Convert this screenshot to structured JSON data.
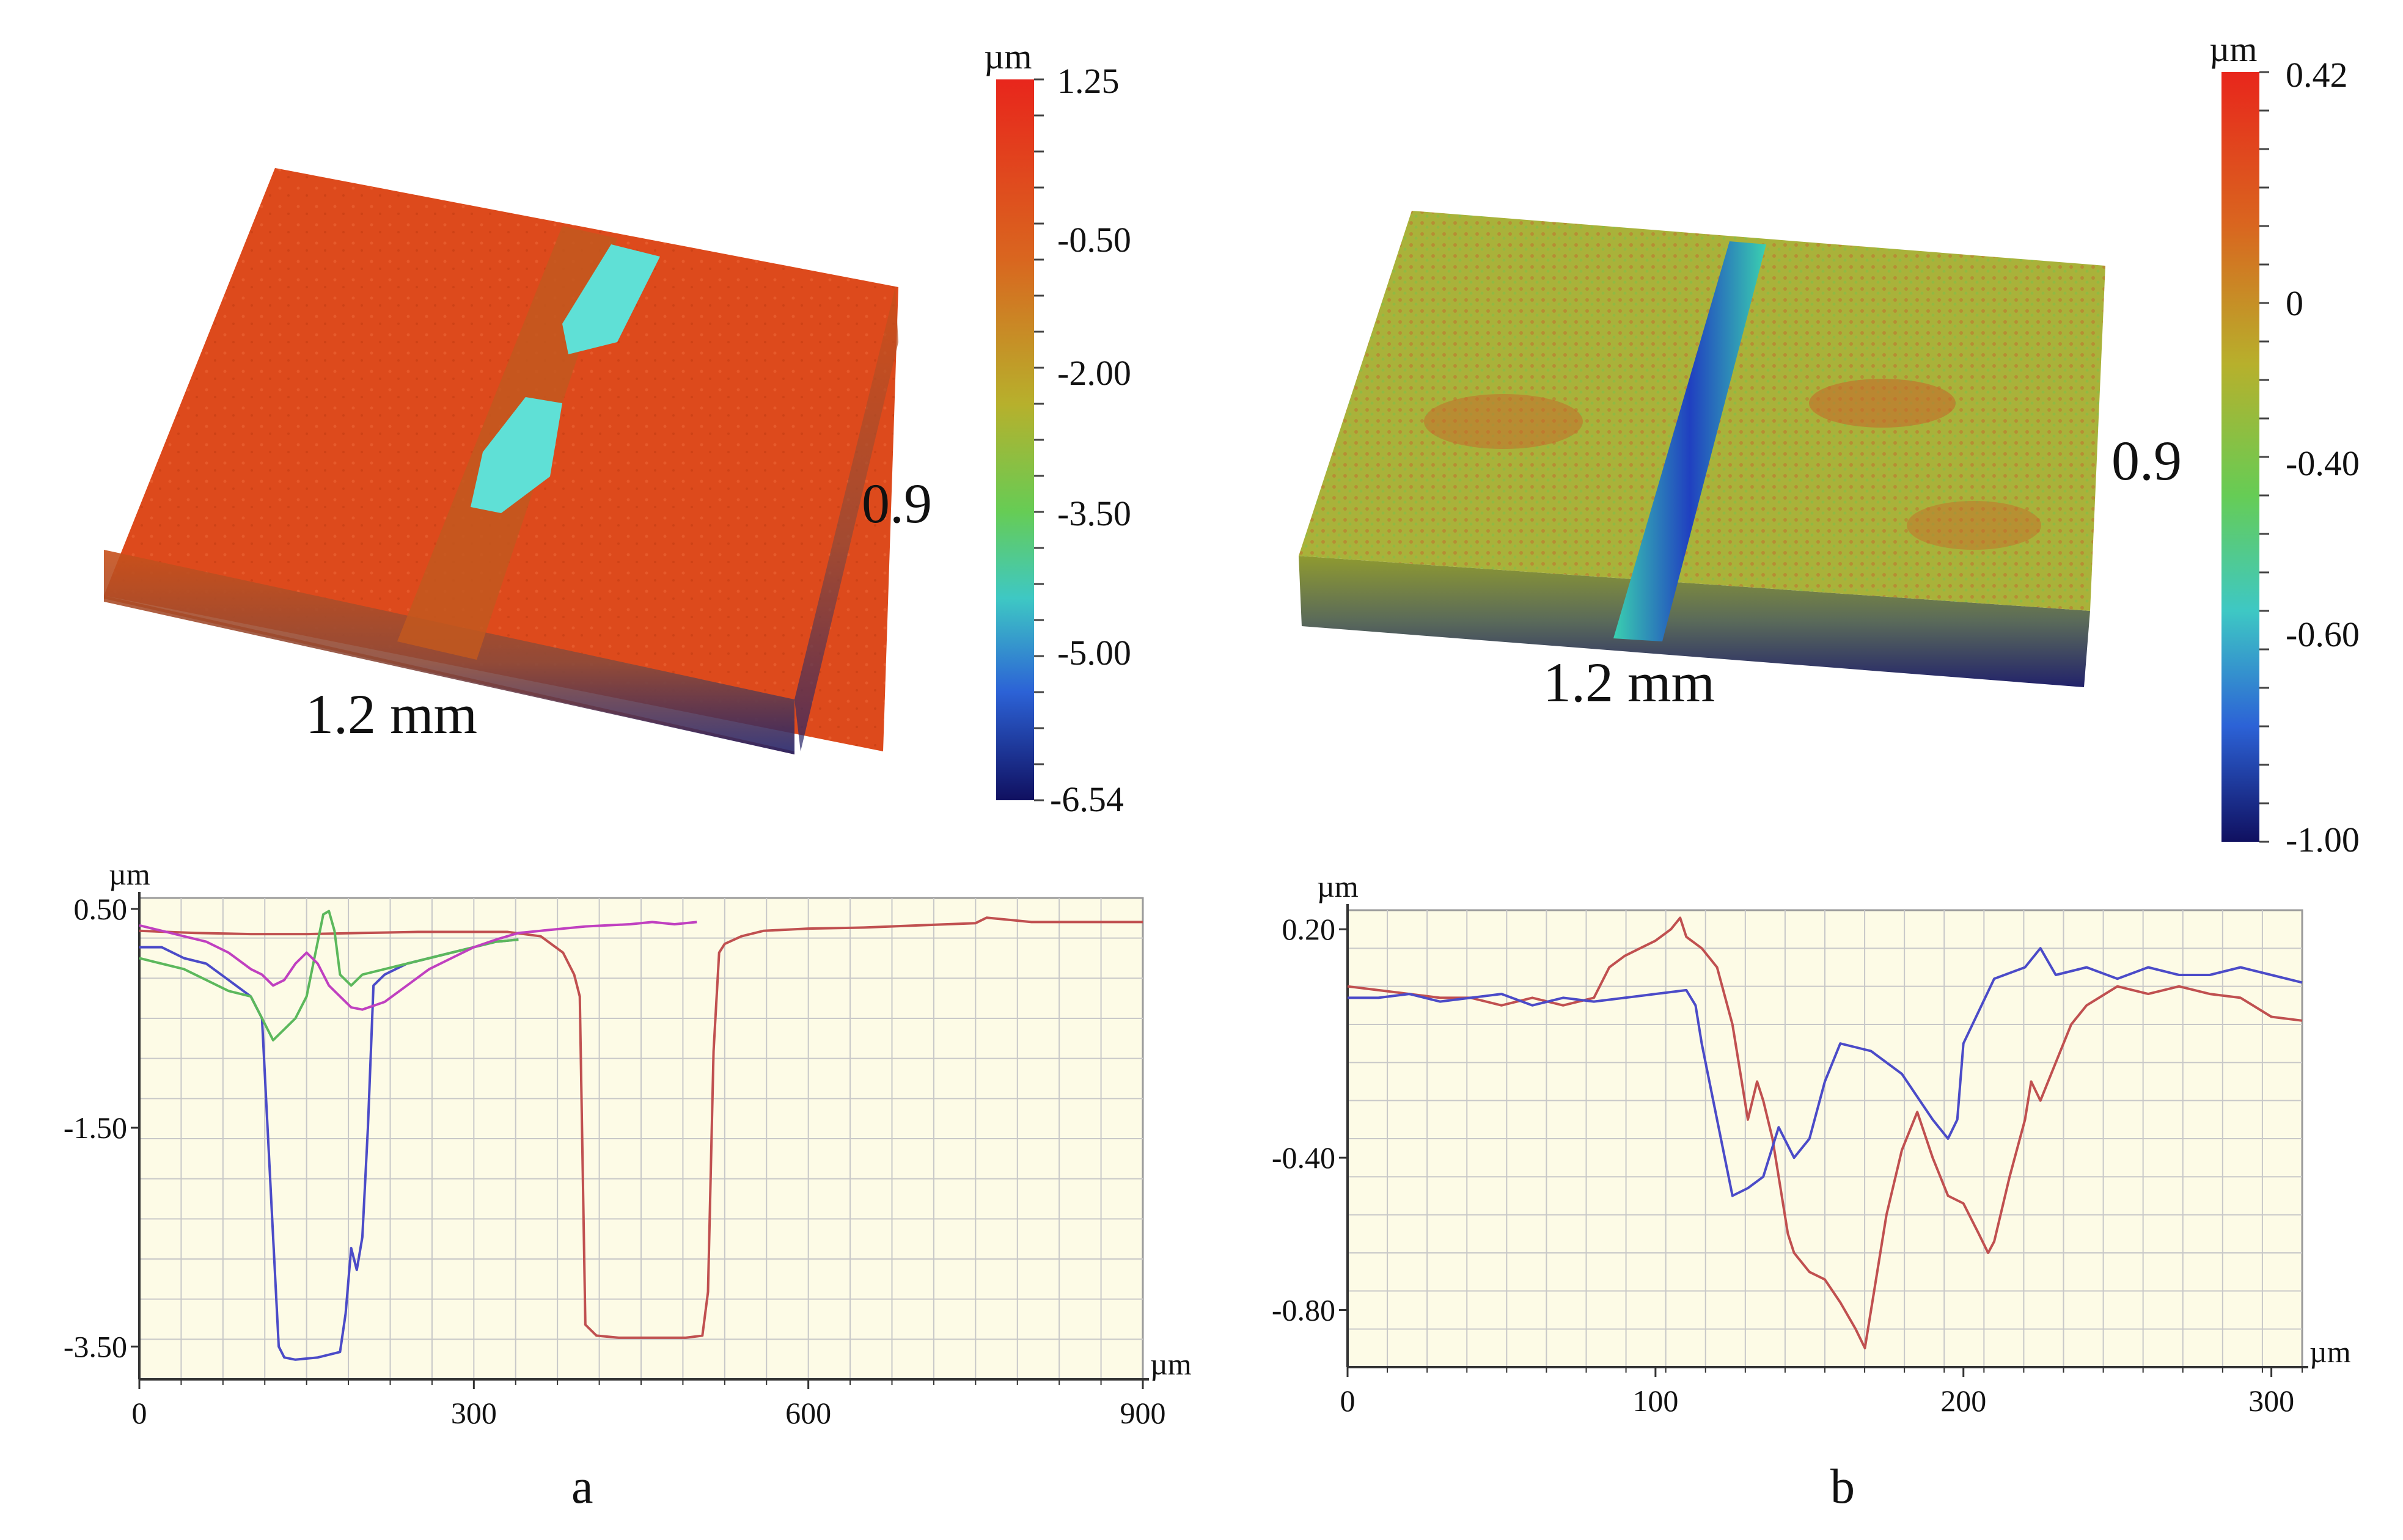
{
  "panels": [
    {
      "label": "a",
      "surface": {
        "width_label": "1.2 mm",
        "depth_label": "0.9"
      },
      "colorbar": {
        "unit": "µm",
        "max": 1.25,
        "min": -6.54,
        "ticks": [
          "1.25",
          "-0.50",
          "-2.00",
          "-3.50",
          "-5.00",
          "-6.54"
        ]
      }
    },
    {
      "label": "b",
      "surface": {
        "width_label": "1.2 mm",
        "depth_label": "0.9"
      },
      "colorbar": {
        "unit": "µm",
        "max": 0.42,
        "min": -1.0,
        "ticks": [
          "0.42",
          "0",
          "-0.40",
          "-0.60",
          "-1.00"
        ]
      }
    }
  ],
  "chart_data": [
    {
      "type": "line",
      "panel": "a",
      "xlabel": "µm",
      "ylabel": "µm",
      "xlim": [
        0,
        900
      ],
      "ylim": [
        -3.8,
        0.6
      ],
      "x_ticks": [
        0,
        300,
        600,
        900
      ],
      "y_tick_labels": [
        {
          "value": 0.5,
          "label": "0.50"
        },
        {
          "value": -1.5,
          "label": "-1.50"
        },
        {
          "value": -3.5,
          "label": "-3.50"
        }
      ],
      "grid": true,
      "colors": {
        "background": "#fdfbe6",
        "grid": "#c8c8c8"
      },
      "series": [
        {
          "color": "#c05050",
          "x": [
            0,
            50,
            100,
            150,
            200,
            250,
            300,
            330,
            360,
            380,
            390,
            395,
            400,
            410,
            430,
            450,
            470,
            490,
            505,
            510,
            515,
            520,
            525,
            540,
            560,
            600,
            650,
            700,
            750,
            760,
            800,
            850,
            900
          ],
          "y": [
            0.3,
            0.28,
            0.27,
            0.27,
            0.28,
            0.29,
            0.29,
            0.29,
            0.25,
            0.1,
            -0.1,
            -0.3,
            -3.3,
            -3.4,
            -3.42,
            -3.42,
            -3.42,
            -3.42,
            -3.4,
            -3.0,
            -0.8,
            0.1,
            0.18,
            0.25,
            0.3,
            0.32,
            0.33,
            0.35,
            0.37,
            0.42,
            0.38,
            0.38,
            0.38
          ]
        },
        {
          "color": "#4b4bc8",
          "x": [
            0,
            20,
            40,
            60,
            80,
            100,
            110,
            115,
            120,
            125,
            130,
            140,
            160,
            180,
            185,
            190,
            195,
            200,
            205,
            210,
            220,
            240,
            260,
            280,
            300,
            320,
            340
          ],
          "y": [
            0.15,
            0.15,
            0.05,
            0.0,
            -0.15,
            -0.3,
            -0.5,
            -1.5,
            -2.5,
            -3.5,
            -3.6,
            -3.62,
            -3.6,
            -3.55,
            -3.2,
            -2.6,
            -2.8,
            -2.5,
            -1.5,
            -0.2,
            -0.1,
            0.0,
            0.05,
            0.1,
            0.15,
            0.2,
            0.22
          ]
        },
        {
          "color": "#5cb85c",
          "x": [
            0,
            20,
            40,
            60,
            80,
            100,
            110,
            120,
            130,
            140,
            150,
            160,
            165,
            170,
            175,
            180,
            190,
            200,
            220,
            240,
            260,
            280,
            300,
            320,
            340
          ],
          "y": [
            0.05,
            0.0,
            -0.05,
            -0.15,
            -0.25,
            -0.3,
            -0.5,
            -0.7,
            -0.6,
            -0.5,
            -0.3,
            0.2,
            0.45,
            0.48,
            0.3,
            -0.1,
            -0.2,
            -0.1,
            -0.05,
            0.0,
            0.05,
            0.1,
            0.15,
            0.2,
            0.22
          ]
        },
        {
          "color": "#c040c0",
          "x": [
            0,
            20,
            40,
            60,
            80,
            100,
            110,
            120,
            130,
            140,
            150,
            160,
            170,
            180,
            190,
            200,
            220,
            240,
            260,
            280,
            300,
            320,
            340,
            360,
            380,
            400,
            420,
            440,
            460,
            480,
            500
          ],
          "y": [
            0.35,
            0.3,
            0.25,
            0.2,
            0.1,
            -0.05,
            -0.1,
            -0.2,
            -0.15,
            0.0,
            0.1,
            0.0,
            -0.2,
            -0.3,
            -0.4,
            -0.42,
            -0.35,
            -0.2,
            -0.05,
            0.05,
            0.15,
            0.22,
            0.28,
            0.3,
            0.32,
            0.34,
            0.35,
            0.36,
            0.38,
            0.36,
            0.38
          ]
        }
      ]
    },
    {
      "type": "line",
      "panel": "b",
      "xlabel": "µm",
      "ylabel": "µm",
      "xlim": [
        0,
        310
      ],
      "ylim": [
        -0.95,
        0.25
      ],
      "x_ticks": [
        0,
        100,
        200,
        300
      ],
      "y_tick_labels": [
        {
          "value": 0.2,
          "label": "0.20"
        },
        {
          "value": -0.4,
          "label": "-0.40"
        },
        {
          "value": -0.8,
          "label": "-0.80"
        }
      ],
      "grid": true,
      "colors": {
        "background": "#fdfbe6",
        "grid": "#c8c8c8"
      },
      "series": [
        {
          "color": "#c05050",
          "x": [
            0,
            10,
            20,
            30,
            40,
            50,
            60,
            70,
            80,
            85,
            90,
            95,
            100,
            105,
            108,
            110,
            115,
            120,
            125,
            128,
            130,
            133,
            135,
            138,
            140,
            143,
            145,
            150,
            155,
            160,
            165,
            168,
            170,
            175,
            180,
            185,
            190,
            195,
            200,
            205,
            208,
            210,
            215,
            220,
            222,
            225,
            230,
            235,
            240,
            250,
            260,
            270,
            280,
            290,
            300,
            310
          ],
          "y": [
            0.05,
            0.04,
            0.03,
            0.02,
            0.02,
            0.0,
            0.02,
            0.0,
            0.02,
            0.1,
            0.13,
            0.15,
            0.17,
            0.2,
            0.23,
            0.18,
            0.15,
            0.1,
            -0.05,
            -0.2,
            -0.3,
            -0.2,
            -0.25,
            -0.35,
            -0.45,
            -0.6,
            -0.65,
            -0.7,
            -0.72,
            -0.78,
            -0.85,
            -0.9,
            -0.8,
            -0.55,
            -0.38,
            -0.28,
            -0.4,
            -0.5,
            -0.52,
            -0.6,
            -0.65,
            -0.62,
            -0.45,
            -0.3,
            -0.2,
            -0.25,
            -0.15,
            -0.05,
            0.0,
            0.05,
            0.03,
            0.05,
            0.03,
            0.02,
            -0.03,
            -0.04
          ]
        },
        {
          "color": "#4b4bc8",
          "x": [
            0,
            10,
            20,
            30,
            40,
            50,
            60,
            70,
            80,
            90,
            100,
            110,
            113,
            115,
            120,
            125,
            130,
            135,
            140,
            145,
            150,
            155,
            160,
            170,
            180,
            190,
            195,
            198,
            200,
            210,
            220,
            225,
            230,
            240,
            250,
            260,
            270,
            280,
            290,
            300,
            310
          ],
          "y": [
            0.02,
            0.02,
            0.03,
            0.01,
            0.02,
            0.03,
            0.0,
            0.02,
            0.01,
            0.02,
            0.03,
            0.04,
            0.0,
            -0.1,
            -0.3,
            -0.5,
            -0.48,
            -0.45,
            -0.32,
            -0.4,
            -0.35,
            -0.2,
            -0.1,
            -0.12,
            -0.18,
            -0.3,
            -0.35,
            -0.3,
            -0.1,
            0.07,
            0.1,
            0.15,
            0.08,
            0.1,
            0.07,
            0.1,
            0.08,
            0.08,
            0.1,
            0.08,
            0.06
          ]
        }
      ]
    }
  ]
}
